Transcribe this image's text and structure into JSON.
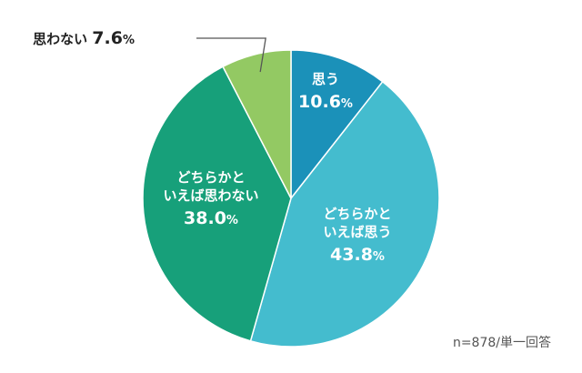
{
  "chart_data": {
    "type": "pie",
    "start_angle_deg": 0,
    "direction": "clockwise",
    "slices": [
      {
        "label_lines": [
          "思う"
        ],
        "value": 10.6,
        "value_text": "10.6",
        "unit": "%",
        "color": "#1b91b9",
        "label_position": "inside"
      },
      {
        "label_lines": [
          "どちらかと",
          "いえば思う"
        ],
        "value": 43.8,
        "value_text": "43.8",
        "unit": "%",
        "color": "#44bcce",
        "label_position": "inside"
      },
      {
        "label_lines": [
          "どちらかと",
          "いえば思わない"
        ],
        "value": 38.0,
        "value_text": "38.0",
        "unit": "%",
        "color": "#17a07a",
        "label_position": "inside"
      },
      {
        "label_lines": [
          "思わない"
        ],
        "value": 7.6,
        "value_text": "7.6",
        "unit": "%",
        "color": "#93c963",
        "label_position": "outside"
      }
    ],
    "note": "n=878/単一回答"
  }
}
